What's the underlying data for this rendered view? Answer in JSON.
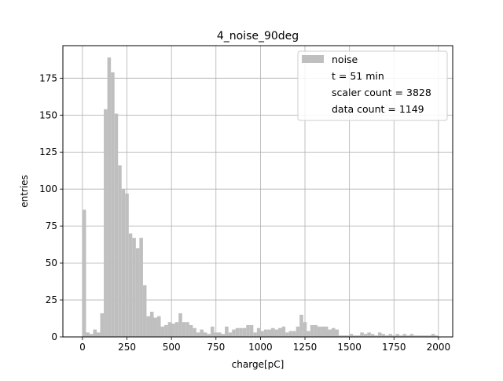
{
  "chart_data": {
    "type": "histogram",
    "title": "4_noise_90deg",
    "xlabel": "charge[pC]",
    "ylabel": "entries",
    "xlim": [
      -110,
      2080
    ],
    "ylim": [
      0,
      197
    ],
    "grid": true,
    "legend_position": "top-right",
    "bin_width": 20,
    "x_ticks": [
      0,
      250,
      500,
      750,
      1000,
      1250,
      1500,
      1750,
      2000
    ],
    "x_tick_labels": [
      "0",
      "250",
      "500",
      "750",
      "1000",
      "1250",
      "1500",
      "1750",
      "2000"
    ],
    "y_ticks": [
      0,
      25,
      50,
      75,
      100,
      125,
      150,
      175
    ],
    "y_tick_labels": [
      "0",
      "25",
      "50",
      "75",
      "100",
      "125",
      "150",
      "175"
    ],
    "series": [
      {
        "name": "noise",
        "color": "#bfbfbf",
        "bins": [
          [
            0,
            86
          ],
          [
            20,
            3
          ],
          [
            40,
            2
          ],
          [
            60,
            5
          ],
          [
            80,
            3
          ],
          [
            100,
            16
          ],
          [
            120,
            154
          ],
          [
            140,
            189
          ],
          [
            160,
            179
          ],
          [
            180,
            151
          ],
          [
            200,
            116
          ],
          [
            220,
            100
          ],
          [
            240,
            97
          ],
          [
            260,
            70
          ],
          [
            280,
            67
          ],
          [
            300,
            60
          ],
          [
            320,
            67
          ],
          [
            340,
            35
          ],
          [
            360,
            14
          ],
          [
            380,
            17
          ],
          [
            400,
            13
          ],
          [
            420,
            14
          ],
          [
            440,
            7
          ],
          [
            460,
            8
          ],
          [
            480,
            10
          ],
          [
            500,
            9
          ],
          [
            520,
            10
          ],
          [
            540,
            16
          ],
          [
            560,
            10
          ],
          [
            580,
            10
          ],
          [
            600,
            8
          ],
          [
            620,
            6
          ],
          [
            640,
            3
          ],
          [
            660,
            5
          ],
          [
            680,
            3
          ],
          [
            700,
            2
          ],
          [
            720,
            7
          ],
          [
            740,
            3
          ],
          [
            760,
            3
          ],
          [
            780,
            2
          ],
          [
            800,
            7
          ],
          [
            820,
            3
          ],
          [
            840,
            5
          ],
          [
            860,
            6
          ],
          [
            880,
            6
          ],
          [
            900,
            6
          ],
          [
            920,
            8
          ],
          [
            940,
            8
          ],
          [
            960,
            3
          ],
          [
            980,
            6
          ],
          [
            1000,
            4
          ],
          [
            1020,
            5
          ],
          [
            1040,
            5
          ],
          [
            1060,
            6
          ],
          [
            1080,
            5
          ],
          [
            1100,
            6
          ],
          [
            1120,
            7
          ],
          [
            1140,
            3
          ],
          [
            1160,
            4
          ],
          [
            1180,
            4
          ],
          [
            1200,
            7
          ],
          [
            1220,
            15
          ],
          [
            1240,
            10
          ],
          [
            1260,
            4
          ],
          [
            1280,
            8
          ],
          [
            1300,
            8
          ],
          [
            1320,
            7
          ],
          [
            1340,
            7
          ],
          [
            1360,
            7
          ],
          [
            1380,
            5
          ],
          [
            1400,
            6
          ],
          [
            1420,
            5
          ],
          [
            1440,
            1
          ],
          [
            1460,
            1
          ],
          [
            1480,
            1
          ],
          [
            1500,
            2
          ],
          [
            1520,
            1
          ],
          [
            1540,
            1
          ],
          [
            1560,
            3
          ],
          [
            1580,
            2
          ],
          [
            1600,
            3
          ],
          [
            1620,
            2
          ],
          [
            1640,
            1
          ],
          [
            1660,
            3
          ],
          [
            1680,
            2
          ],
          [
            1700,
            1
          ],
          [
            1720,
            2
          ],
          [
            1740,
            1
          ],
          [
            1760,
            2
          ],
          [
            1780,
            1
          ],
          [
            1800,
            2
          ],
          [
            1820,
            1
          ],
          [
            1840,
            2
          ],
          [
            1860,
            1
          ],
          [
            1880,
            1
          ],
          [
            1900,
            1
          ],
          [
            1920,
            1
          ],
          [
            1940,
            1
          ],
          [
            1960,
            2
          ],
          [
            1980,
            1
          ]
        ]
      }
    ],
    "legend_entries": [
      {
        "label": "noise",
        "has_patch": true
      },
      {
        "label": "t = 51 min",
        "has_patch": false
      },
      {
        "label": "scaler count = 3828",
        "has_patch": false
      },
      {
        "label": "data count = 1149",
        "has_patch": false
      }
    ]
  }
}
